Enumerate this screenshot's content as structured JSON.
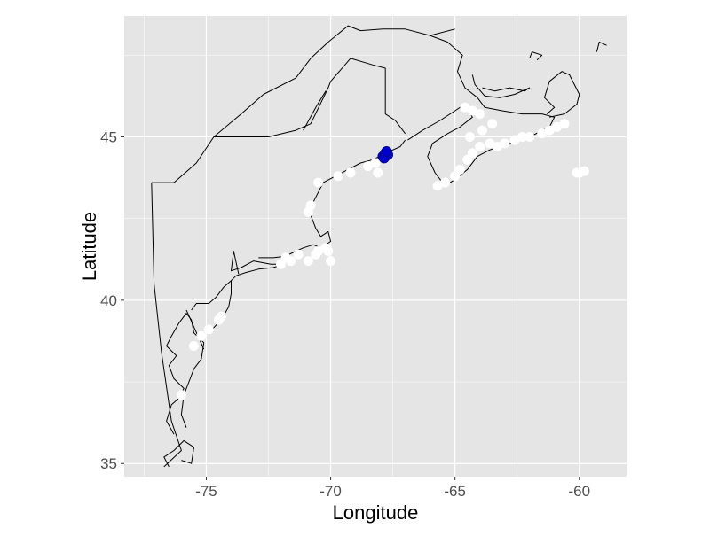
{
  "x_axis_title": "Longitude",
  "y_axis_title": "Latitude",
  "colors": {
    "panel_background": "#e5e5e5",
    "grid_line": "#ffffff",
    "tick_label": "#4d4d4d",
    "axis_title": "#000000",
    "coastline": "#000000",
    "track_point": "#ffffff",
    "highlight_point": "#0000cc",
    "highlight_point_stroke": "#00008b"
  },
  "chart_data": {
    "type": "scatter",
    "xlim": [
      -78.3,
      -58.1
    ],
    "ylim": [
      34.6,
      48.7
    ],
    "x_ticks": [
      -75,
      -70,
      -65,
      -60
    ],
    "x_tick_labels": [
      "-75",
      "-70",
      "-65",
      "-60"
    ],
    "y_ticks": [
      35,
      40,
      45
    ],
    "y_tick_labels": [
      "35",
      "40",
      "45"
    ],
    "grid": true,
    "legend": "none",
    "series": [
      {
        "role": "track_points",
        "color": "#ffffff",
        "points": [
          [
            -76.0,
            37.1
          ],
          [
            -75.5,
            38.6
          ],
          [
            -75.2,
            38.9
          ],
          [
            -74.9,
            39.1
          ],
          [
            -74.5,
            39.4
          ],
          [
            -74.4,
            39.5
          ],
          [
            -72.0,
            41.1
          ],
          [
            -71.8,
            41.3
          ],
          [
            -71.6,
            41.2
          ],
          [
            -71.3,
            41.4
          ],
          [
            -70.9,
            41.2
          ],
          [
            -70.6,
            41.4
          ],
          [
            -70.5,
            41.5
          ],
          [
            -70.2,
            41.6
          ],
          [
            -70.1,
            41.5
          ],
          [
            -70.0,
            41.2
          ],
          [
            -70.9,
            42.7
          ],
          [
            -70.8,
            42.9
          ],
          [
            -70.5,
            43.6
          ],
          [
            -69.7,
            43.8
          ],
          [
            -69.2,
            43.9
          ],
          [
            -68.5,
            44.1
          ],
          [
            -68.2,
            44.2
          ],
          [
            -68.1,
            43.9
          ],
          [
            -65.7,
            43.5
          ],
          [
            -65.4,
            43.6
          ],
          [
            -65.0,
            43.8
          ],
          [
            -64.8,
            44.0
          ],
          [
            -64.5,
            44.3
          ],
          [
            -64.3,
            44.5
          ],
          [
            -64.0,
            44.7
          ],
          [
            -63.6,
            44.8
          ],
          [
            -63.3,
            44.7
          ],
          [
            -63.0,
            44.8
          ],
          [
            -62.6,
            44.9
          ],
          [
            -62.3,
            45.0
          ],
          [
            -62.0,
            45.0
          ],
          [
            -61.5,
            45.1
          ],
          [
            -61.2,
            45.2
          ],
          [
            -60.9,
            45.3
          ],
          [
            -60.6,
            45.4
          ],
          [
            -63.5,
            45.4
          ],
          [
            -64.0,
            45.7
          ],
          [
            -64.3,
            45.8
          ],
          [
            -64.6,
            45.9
          ],
          [
            -64.4,
            45.0
          ],
          [
            -63.9,
            45.2
          ],
          [
            -60.0,
            43.9
          ],
          [
            -59.8,
            43.95
          ],
          [
            -60.1,
            43.9
          ]
        ]
      },
      {
        "role": "highlight_points",
        "color": "#0000cc",
        "points": [
          [
            -67.9,
            44.4
          ],
          [
            -67.8,
            44.5
          ],
          [
            -67.7,
            44.45
          ],
          [
            -67.85,
            44.35
          ],
          [
            -67.75,
            44.55
          ]
        ]
      }
    ],
    "coastlines": [
      [
        [
          -76.5,
          34.9
        ],
        [
          -76.7,
          35.2
        ],
        [
          -76.3,
          35.4
        ],
        [
          -75.9,
          35.7
        ],
        [
          -75.5,
          35.5
        ],
        [
          -75.6,
          35.0
        ],
        [
          -76.0,
          35.1
        ]
      ],
      [
        [
          -76.3,
          35.9
        ],
        [
          -76.6,
          36.3
        ],
        [
          -76.4,
          36.8
        ],
        [
          -76.1,
          37.0
        ],
        [
          -75.9,
          37.3
        ],
        [
          -76.3,
          37.6
        ],
        [
          -76.5,
          38.0
        ],
        [
          -76.2,
          38.3
        ],
        [
          -76.6,
          38.6
        ],
        [
          -76.4,
          38.9
        ],
        [
          -76.1,
          39.3
        ],
        [
          -75.8,
          39.6
        ],
        [
          -75.6,
          39.4
        ],
        [
          -75.5,
          39.0
        ],
        [
          -75.1,
          38.7
        ],
        [
          -75.2,
          38.2
        ],
        [
          -75.5,
          37.9
        ],
        [
          -75.7,
          37.5
        ],
        [
          -75.9,
          37.1
        ],
        [
          -76.0,
          36.5
        ],
        [
          -75.8,
          36.1
        ]
      ],
      [
        [
          -75.6,
          39.7
        ],
        [
          -75.4,
          39.9
        ],
        [
          -74.9,
          39.9
        ],
        [
          -74.6,
          40.1
        ],
        [
          -74.3,
          40.4
        ],
        [
          -74.0,
          40.6
        ],
        [
          -74.0,
          40.2
        ],
        [
          -74.1,
          39.8
        ],
        [
          -74.4,
          39.4
        ],
        [
          -74.9,
          39.0
        ],
        [
          -74.9,
          38.95
        ]
      ],
      [
        [
          -74.0,
          40.6
        ],
        [
          -73.8,
          40.75
        ],
        [
          -73.4,
          40.85
        ],
        [
          -72.9,
          40.95
        ],
        [
          -72.3,
          41.0
        ],
        [
          -71.9,
          41.1
        ],
        [
          -72.4,
          41.1
        ],
        [
          -73.1,
          41.2
        ],
        [
          -73.6,
          41.0
        ],
        [
          -74.0,
          40.9
        ],
        [
          -73.9,
          41.5
        ],
        [
          -73.7,
          40.8
        ]
      ],
      [
        [
          -72.9,
          41.3
        ],
        [
          -72.3,
          41.3
        ],
        [
          -71.8,
          41.35
        ],
        [
          -71.4,
          41.5
        ],
        [
          -71.1,
          41.6
        ],
        [
          -70.7,
          41.7
        ],
        [
          -70.4,
          41.6
        ],
        [
          -70.0,
          41.8
        ],
        [
          -70.1,
          42.1
        ],
        [
          -70.4,
          41.95
        ],
        [
          -70.6,
          42.2
        ],
        [
          -70.8,
          42.6
        ],
        [
          -70.7,
          43.0
        ],
        [
          -70.3,
          43.6
        ],
        [
          -69.8,
          43.8
        ],
        [
          -69.3,
          44.0
        ],
        [
          -68.8,
          44.2
        ],
        [
          -68.3,
          44.3
        ],
        [
          -67.8,
          44.5
        ],
        [
          -67.2,
          44.7
        ],
        [
          -67.0,
          44.9
        ]
      ],
      [
        [
          -66.9,
          44.9
        ],
        [
          -66.3,
          45.2
        ],
        [
          -65.6,
          45.5
        ],
        [
          -65.0,
          45.8
        ],
        [
          -64.6,
          46.0
        ],
        [
          -64.3,
          45.6
        ],
        [
          -64.8,
          45.3
        ],
        [
          -65.3,
          45.1
        ],
        [
          -65.9,
          44.8
        ],
        [
          -66.1,
          44.4
        ],
        [
          -65.8,
          43.9
        ],
        [
          -65.4,
          43.5
        ],
        [
          -65.0,
          43.7
        ],
        [
          -64.5,
          44.0
        ],
        [
          -64.1,
          44.4
        ],
        [
          -63.6,
          44.6
        ],
        [
          -62.8,
          44.8
        ],
        [
          -62.0,
          45.0
        ],
        [
          -61.2,
          45.3
        ],
        [
          -61.0,
          45.6
        ],
        [
          -61.5,
          45.7
        ],
        [
          -62.3,
          45.7
        ],
        [
          -63.1,
          45.8
        ],
        [
          -63.8,
          45.9
        ],
        [
          -64.1,
          46.2
        ],
        [
          -64.6,
          46.5
        ],
        [
          -64.9,
          47.0
        ],
        [
          -64.7,
          47.5
        ],
        [
          -65.3,
          47.9
        ],
        [
          -66.0,
          48.1
        ],
        [
          -65.0,
          48.3
        ]
      ],
      [
        [
          -63.9,
          46.5
        ],
        [
          -63.4,
          46.4
        ],
        [
          -62.8,
          46.5
        ],
        [
          -62.2,
          46.4
        ],
        [
          -62.0,
          46.5
        ],
        [
          -62.6,
          46.3
        ],
        [
          -63.2,
          46.2
        ],
        [
          -63.8,
          46.25
        ],
        [
          -64.2,
          46.6
        ],
        [
          -64.3,
          46.9
        ]
      ],
      [
        [
          -61.2,
          45.6
        ],
        [
          -60.6,
          45.7
        ],
        [
          -60.1,
          46.0
        ],
        [
          -60.0,
          46.3
        ],
        [
          -60.4,
          46.9
        ],
        [
          -60.7,
          47.0
        ],
        [
          -61.2,
          46.7
        ],
        [
          -61.4,
          46.2
        ],
        [
          -61.0,
          45.9
        ],
        [
          -61.3,
          45.7
        ]
      ],
      [
        [
          -61.7,
          47.35
        ],
        [
          -61.5,
          47.5
        ],
        [
          -61.9,
          47.6
        ],
        [
          -62.0,
          47.4
        ]
      ],
      [
        [
          -59.3,
          47.6
        ],
        [
          -59.2,
          47.9
        ],
        [
          -58.9,
          47.8
        ]
      ]
    ],
    "borders": [
      [
        [
          -77.2,
          43.6
        ],
        [
          -76.3,
          43.6
        ],
        [
          -75.4,
          44.2
        ],
        [
          -74.7,
          45.0
        ],
        [
          -74.0,
          45.0
        ],
        [
          -72.5,
          45.0
        ],
        [
          -71.4,
          45.2
        ],
        [
          -70.8,
          45.4
        ],
        [
          -70.1,
          46.5
        ],
        [
          -70.0,
          46.7
        ],
        [
          -69.2,
          47.4
        ],
        [
          -68.3,
          47.2
        ],
        [
          -67.8,
          47.1
        ],
        [
          -67.8,
          45.7
        ],
        [
          -67.4,
          45.5
        ],
        [
          -67.0,
          45.1
        ]
      ],
      [
        [
          -77.2,
          43.6
        ],
        [
          -77.1,
          40.5
        ],
        [
          -76.8,
          38.4
        ],
        [
          -76.4,
          36.3
        ],
        [
          -76.0,
          35.4
        ],
        [
          -76.7,
          34.9
        ]
      ],
      [
        [
          -75.8,
          39.7
        ],
        [
          -75.1,
          38.5
        ]
      ],
      [
        [
          -74.7,
          45.0
        ],
        [
          -73.6,
          45.7
        ],
        [
          -72.7,
          46.3
        ],
        [
          -71.4,
          46.8
        ],
        [
          -70.8,
          47.4
        ],
        [
          -70.1,
          47.9
        ],
        [
          -69.3,
          48.4
        ],
        [
          -68.8,
          48.25
        ],
        [
          -67.9,
          48.3
        ],
        [
          -67.0,
          48.3
        ],
        [
          -66.0,
          48.1
        ]
      ],
      [
        [
          -71.1,
          45.2
        ],
        [
          -70.6,
          45.9
        ],
        [
          -70.2,
          46.4
        ]
      ],
      [
        [
          -73.5,
          45.0
        ],
        [
          -73.5,
          45.0
        ]
      ]
    ]
  }
}
